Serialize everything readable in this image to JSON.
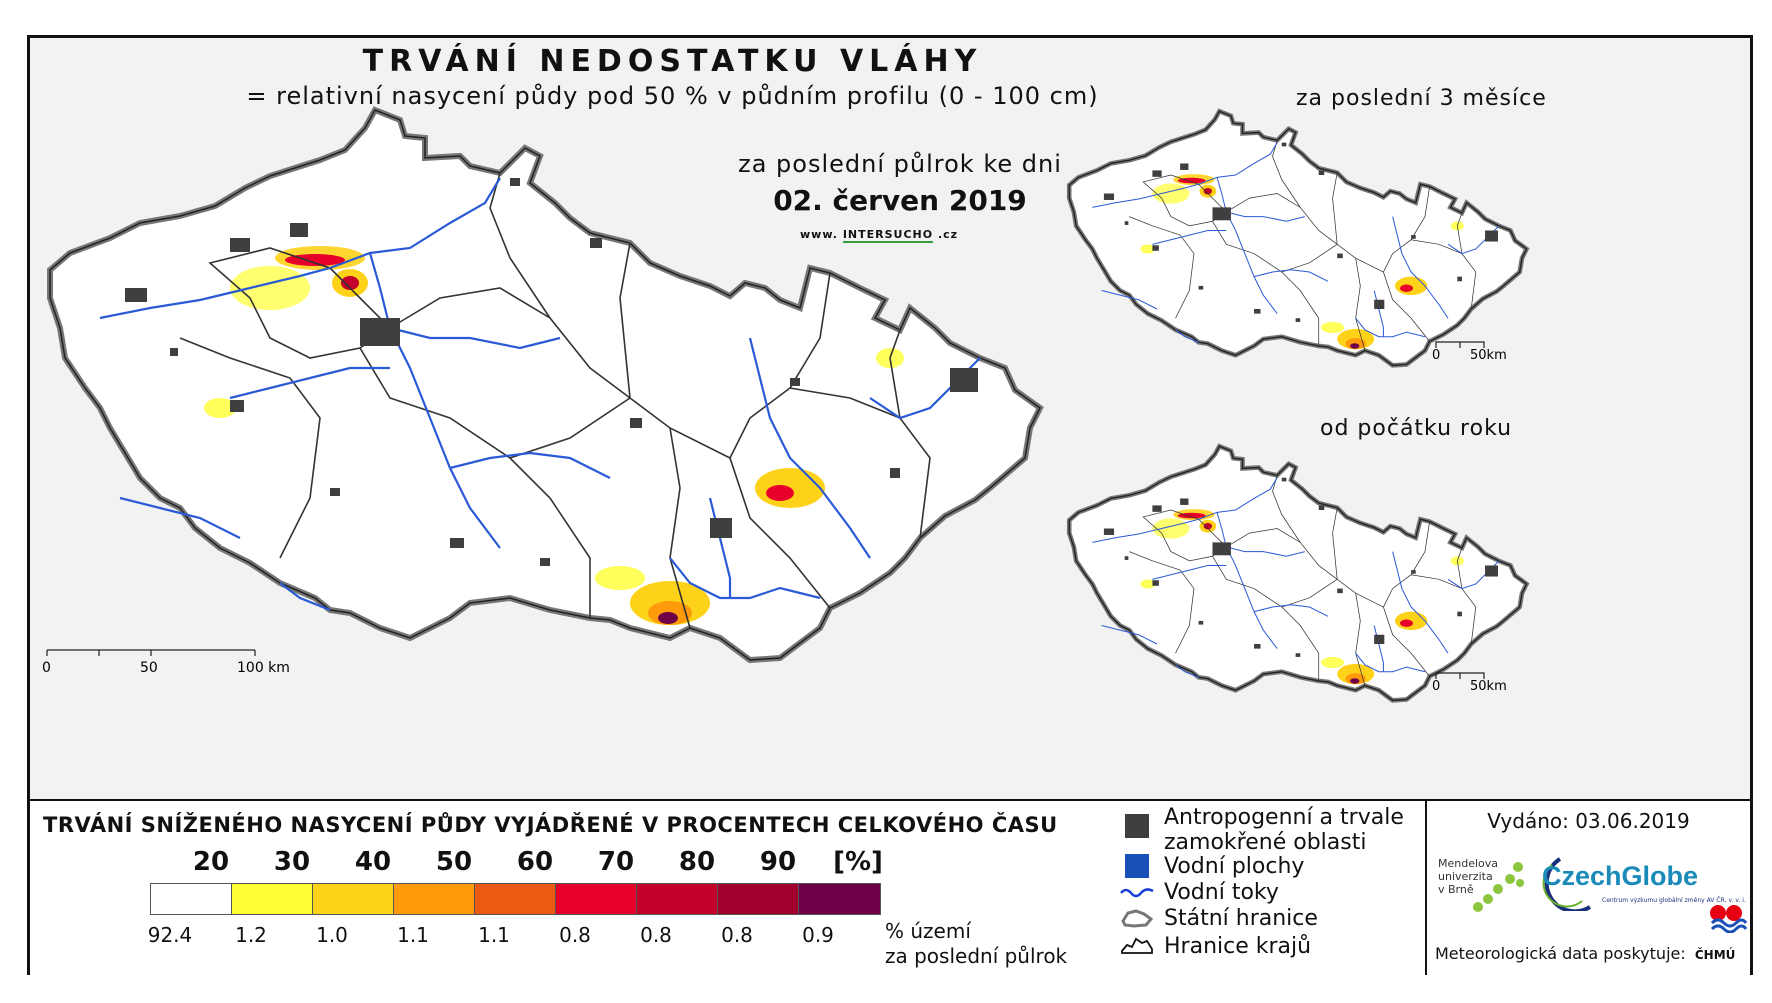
{
  "header": {
    "title": "TRVÁNÍ NEDOSTATKU VLÁHY",
    "subtitle": "= relativní nasycení půdy pod 50 % v půdním profilu (0 - 100 cm)",
    "period": "za poslední půlrok ke dni",
    "date": "02. červen 2019",
    "web_prefix": "www.",
    "web_name": "INTERSUCHO",
    "web_suffix": ".cz"
  },
  "insets": [
    {
      "title": "za poslední 3 měsíce",
      "scale_0": "0",
      "scale_50": "50km"
    },
    {
      "title": "od počátku roku",
      "scale_0": "0",
      "scale_50": "50km"
    }
  ],
  "scalebar": {
    "label_0": "0",
    "label_50": "50",
    "label_100": "100 km"
  },
  "legend": {
    "title": "TRVÁNÍ SNÍŽENÉHO NASYCENÍ PŮDY VYJÁDŘENÉ V PROCENTECH CELKOVÉHO ČASU",
    "ticks": [
      "20",
      "30",
      "40",
      "50",
      "60",
      "70",
      "80",
      "90",
      "[%]"
    ],
    "colors": [
      "#ffffff",
      "#ffff33",
      "#ffd21a",
      "#ff9a0a",
      "#ea5a12",
      "#e6002a",
      "#c2002a",
      "#a0002c",
      "#6e0048"
    ],
    "percentages": [
      "92.4",
      "1.2",
      "1.0",
      "1.1",
      "1.1",
      "0.8",
      "0.8",
      "0.8",
      "0.9"
    ],
    "pct_label_1": "% území",
    "pct_label_2": "za poslední půlrok"
  },
  "symbols": {
    "anthropogenic_1": "Antropogenní a trvale",
    "anthropogenic_2": "zamokřené oblasti",
    "water_bodies": "Vodní plochy",
    "rivers": "Vodní toky",
    "state_border": "Státní hranice",
    "region_border": "Hranice krajů"
  },
  "colors": {
    "urban": "#3f3f3f",
    "water": "#1a4fb8",
    "river": "#2a5ad6",
    "border": "#555555"
  },
  "issue": {
    "issued": "Vydáno: 03.06.2019",
    "mendel_1": "Mendelova",
    "mendel_2": "univerzita",
    "mendel_3": "v Brně",
    "czechglobe": "CzechGlobe",
    "czechglobe_sub": "Centrum výzkumu globální změny AV ČR, v. v. i.",
    "meteo": "Meteorologická data poskytuje:",
    "chmu": "ČHMÚ"
  }
}
